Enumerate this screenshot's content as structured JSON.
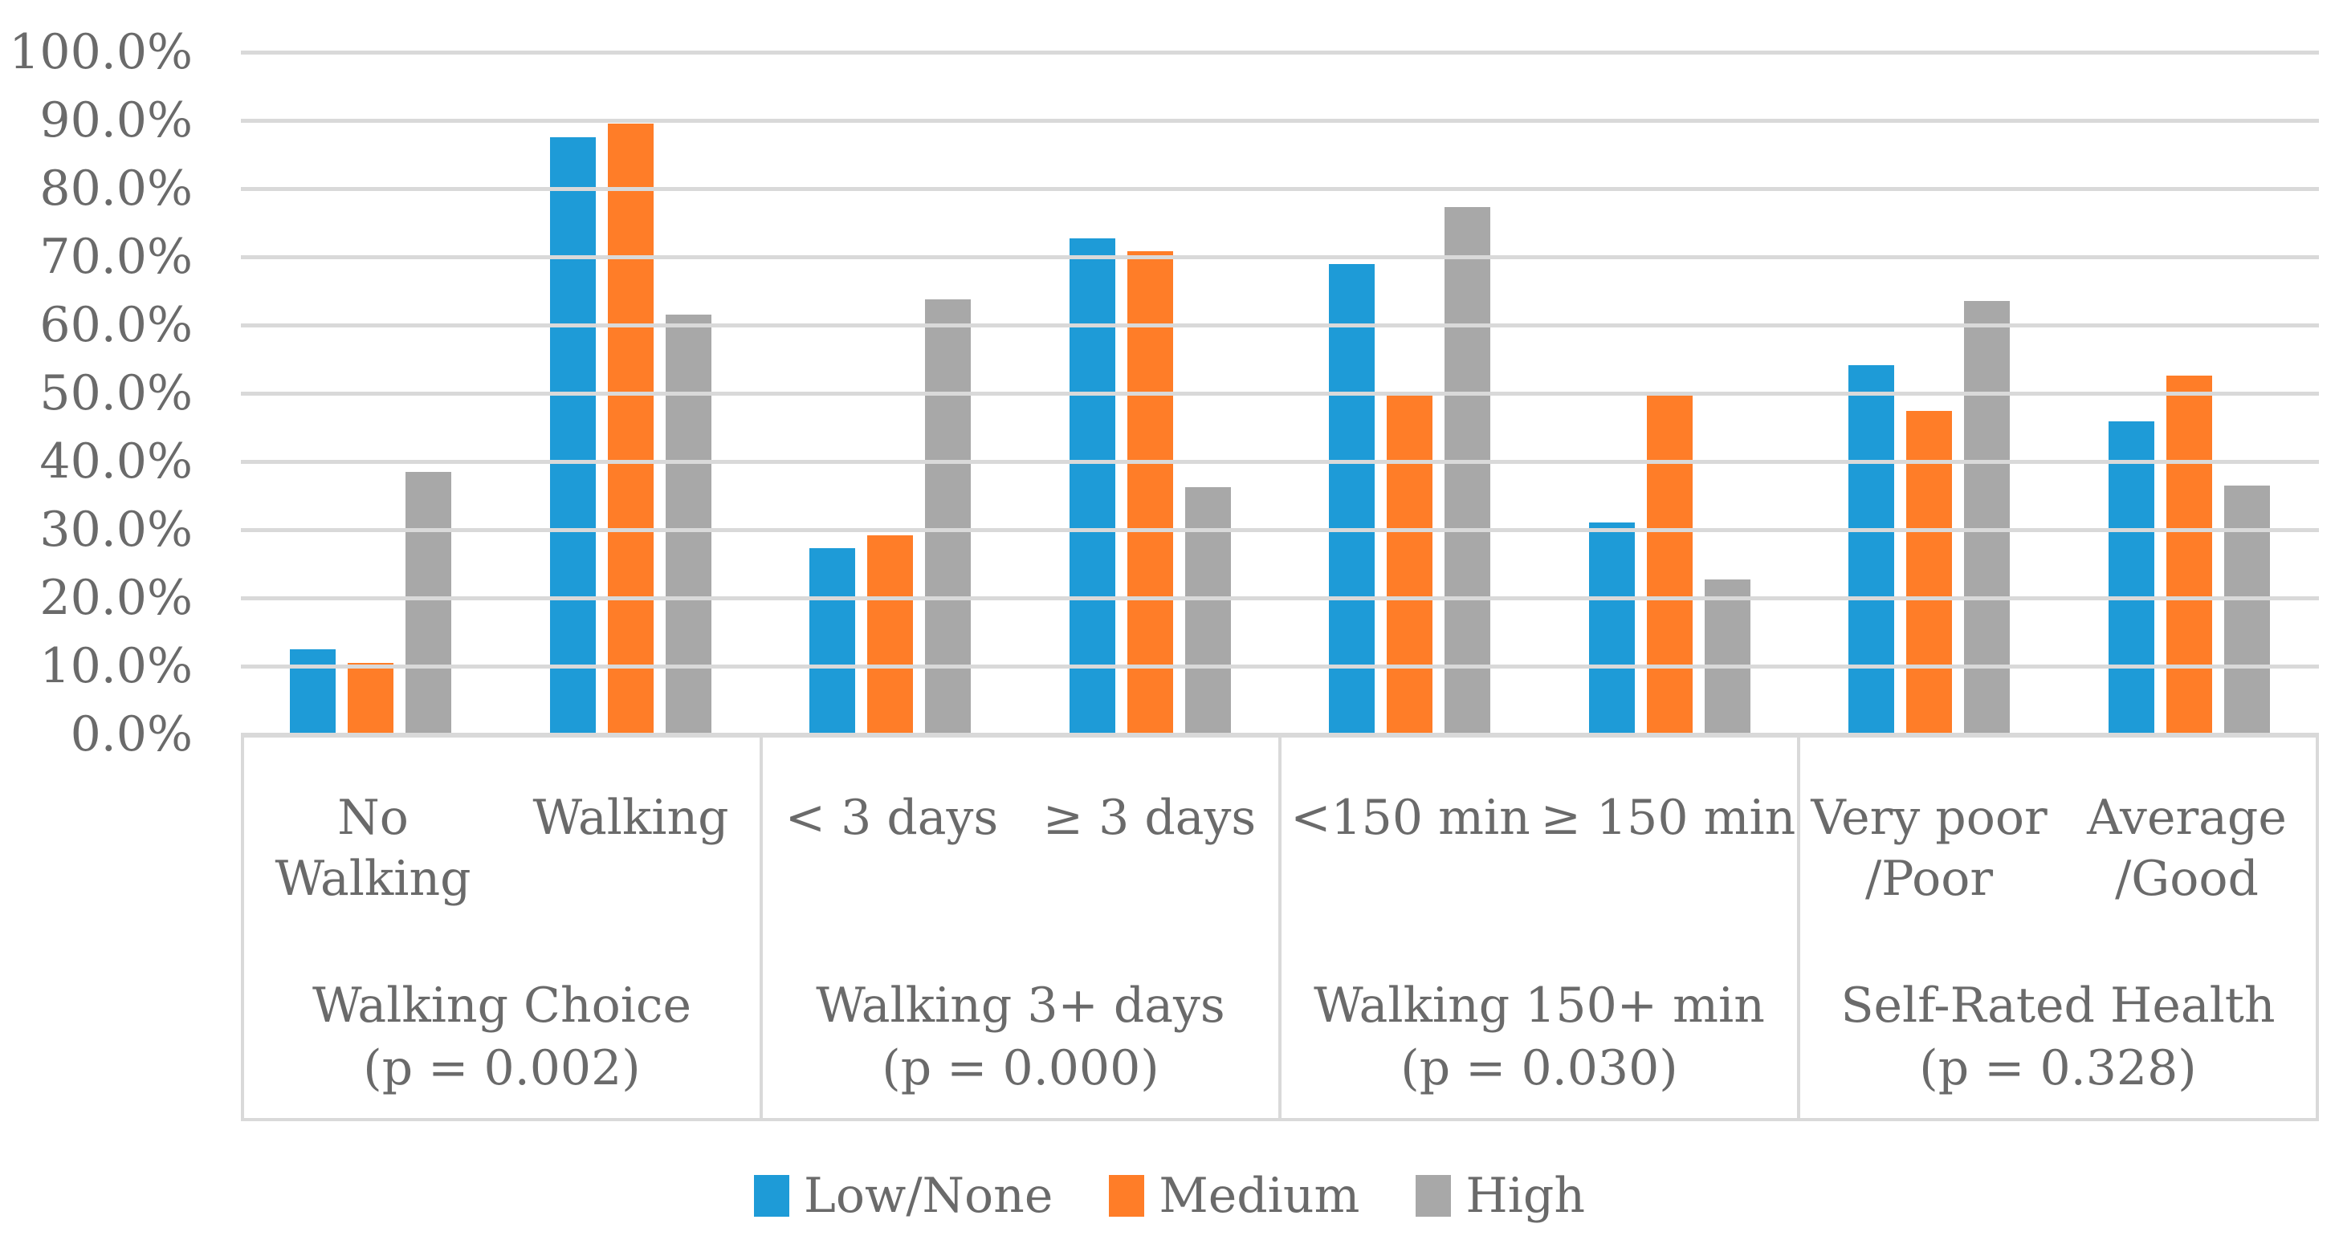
{
  "figure": {
    "background": "#ffffff",
    "text_color": "#6a6a6a",
    "gridline_color": "#d9d9d9",
    "border_color": "#d9d9d9"
  },
  "chart_data": {
    "type": "bar",
    "title": "",
    "xlabel": "",
    "ylabel": "",
    "ylim": [
      0,
      100
    ],
    "grid": true,
    "legend_position": "bottom",
    "y_ticks": [
      "100.0%",
      "90.0%",
      "80.0%",
      "70.0%",
      "60.0%",
      "50.0%",
      "40.0%",
      "30.0%",
      "20.0%",
      "10.0%",
      "0.0%"
    ],
    "series": [
      {
        "name": "Low/None",
        "color": "#1e9bd7"
      },
      {
        "name": "Medium",
        "color": "#ff7d28"
      },
      {
        "name": "High",
        "color": "#a8a8a8"
      }
    ],
    "groups": [
      {
        "label": "Walking Choice",
        "p_label": "(p = 0.002)",
        "clusters": [
          {
            "label_lines": [
              "No",
              "Walking"
            ],
            "values": [
              12.5,
              10.5,
              38.5
            ]
          },
          {
            "label_lines": [
              "Walking"
            ],
            "values": [
              87.5,
              89.5,
              61.5
            ]
          }
        ]
      },
      {
        "label": "Walking 3+ days",
        "p_label": "(p = 0.000)",
        "clusters": [
          {
            "label_lines": [
              "< 3 days"
            ],
            "values": [
              27.3,
              29.2,
              63.8
            ]
          },
          {
            "label_lines": [
              "≥ 3 days"
            ],
            "values": [
              72.7,
              70.8,
              36.2
            ]
          }
        ]
      },
      {
        "label": "Walking 150+ min",
        "p_label": "(p = 0.030)",
        "clusters": [
          {
            "label_lines": [
              "<150 min"
            ],
            "values": [
              68.9,
              50.0,
              77.3
            ]
          },
          {
            "label_lines": [
              "≥ 150 min"
            ],
            "values": [
              31.1,
              50.0,
              22.7
            ]
          }
        ]
      },
      {
        "label": "Self-Rated Health",
        "p_label": "(p = 0.328)",
        "clusters": [
          {
            "label_lines": [
              "Very poor",
              "/Poor"
            ],
            "values": [
              54.1,
              47.4,
              63.5
            ]
          },
          {
            "label_lines": [
              "Average",
              "/Good"
            ],
            "values": [
              45.9,
              52.6,
              36.5
            ]
          }
        ]
      }
    ]
  }
}
